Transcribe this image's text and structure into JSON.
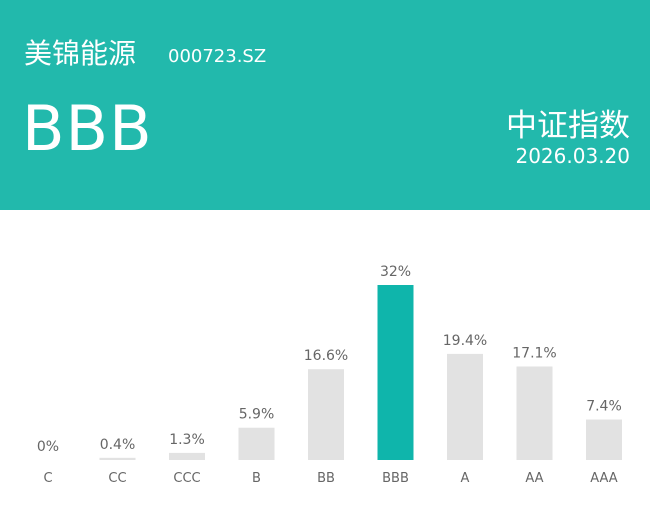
{
  "header": {
    "company": "美锦能源",
    "code": "000723.SZ",
    "rating": "BBB",
    "index_name": "中证指数",
    "date": "2026.03.20",
    "color": "#22b9ac"
  },
  "chart_data": {
    "type": "bar",
    "categories": [
      "C",
      "CC",
      "CCC",
      "B",
      "BB",
      "BBB",
      "A",
      "AA",
      "AAA"
    ],
    "values": [
      0,
      0.4,
      1.3,
      5.9,
      16.6,
      32,
      19.4,
      17.1,
      7.4
    ],
    "data_labels": [
      "0%",
      "0.4%",
      "1.3%",
      "5.9%",
      "16.6%",
      "32%",
      "19.4%",
      "17.1%",
      "7.4%"
    ],
    "highlight": "BBB",
    "colors": {
      "default": "#e2e2e2",
      "highlight": "#0fb5ab"
    },
    "ylim": [
      0,
      32
    ],
    "grid": false
  }
}
